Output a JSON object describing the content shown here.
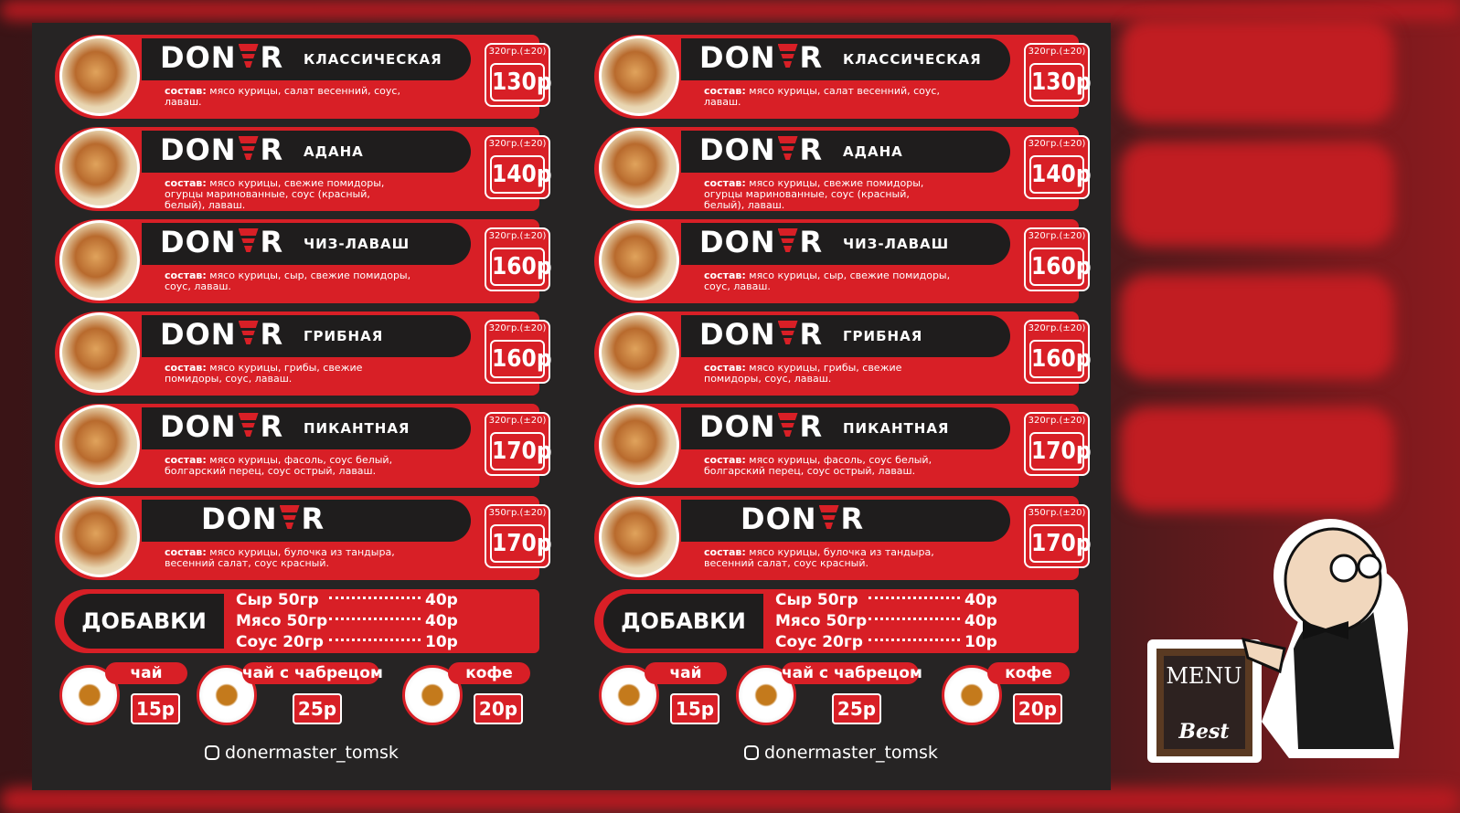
{
  "menu": {
    "brand_left": "DON",
    "brand_right": "R",
    "items": [
      {
        "name": "КЛАССИЧЕСКАЯ",
        "weight": "320гр.(±20)",
        "price": "130р",
        "composition_label": "состав:",
        "composition": "мясо курицы, салат весенний, соус, лаваш."
      },
      {
        "name": "АДАНА",
        "weight": "320гр.(±20)",
        "price": "140р",
        "composition_label": "состав:",
        "composition": "мясо курицы, свежие помидоры, огурцы маринованные, соус (красный, белый), лаваш."
      },
      {
        "name": "ЧИЗ-ЛАВАШ",
        "weight": "320гр.(±20)",
        "price": "160р",
        "composition_label": "состав:",
        "composition": "мясо курицы, сыр, свежие помидоры, соус, лаваш."
      },
      {
        "name": "ГРИБНАЯ",
        "weight": "320гр.(±20)",
        "price": "160р",
        "composition_label": "состав:",
        "composition": "мясо курицы, грибы, свежие помидоры, соус, лаваш."
      },
      {
        "name": "ПИКАНТНАЯ",
        "weight": "320гр.(±20)",
        "price": "170р",
        "composition_label": "состав:",
        "composition": "мясо курицы, фасоль, соус белый, болгарский перец, соус острый, лаваш."
      },
      {
        "name": null,
        "weight": "350гр.(±20)",
        "price": "170р",
        "composition_label": "состав:",
        "composition": "мясо курицы, булочка из тандыра, весенний салат, соус красный."
      }
    ],
    "addons": {
      "title": "ДОБАВКИ",
      "items": [
        {
          "name": "Сыр 50гр",
          "price": "40р"
        },
        {
          "name": "Мясо 50гр",
          "price": "40р"
        },
        {
          "name": "Соус 20гр",
          "price": "10р"
        }
      ]
    },
    "drinks": [
      {
        "name": "чай",
        "price": "15р"
      },
      {
        "name": "чай с чабрецом",
        "price": "25р"
      },
      {
        "name": "кофе",
        "price": "20р"
      }
    ],
    "instagram": "donermaster_tomsk"
  },
  "badge": {
    "sign": "MENU",
    "label": "Best"
  }
}
